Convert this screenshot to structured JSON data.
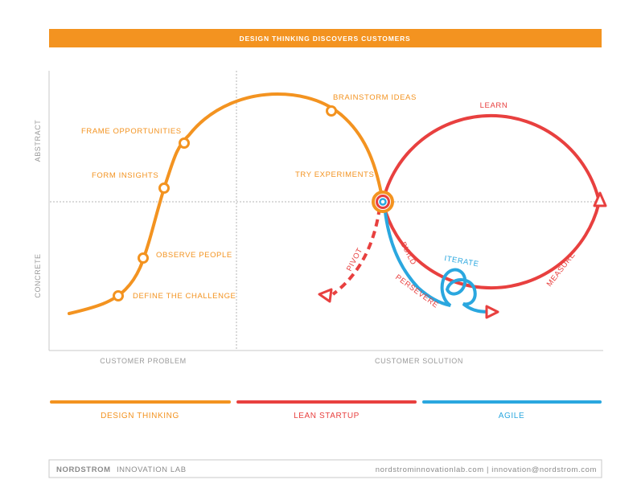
{
  "banner": {
    "title": "DESIGN THINKING DISCOVERS CUSTOMERS"
  },
  "axes": {
    "y_top": "ABSTRACT",
    "y_bottom": "CONCRETE",
    "x_left": "CUSTOMER PROBLEM",
    "x_right": "CUSTOMER SOLUTION"
  },
  "design_steps": [
    "DEFINE THE CHALLENGE",
    "OBSERVE PEOPLE",
    "FORM INSIGHTS",
    "FRAME OPPORTUNITIES",
    "BRAINSTORM IDEAS",
    "TRY EXPERIMENTS"
  ],
  "lean_labels": {
    "learn": "LEARN",
    "build": "BUILD",
    "measure": "MEASURE",
    "pivot": "PIVOT",
    "persevere": "PERSEVERE"
  },
  "agile_labels": {
    "iterate": "ITERATE"
  },
  "legend": [
    {
      "label": "DESIGN THINKING",
      "color": "#F39320"
    },
    {
      "label": "LEAN STARTUP",
      "color": "#E8403F"
    },
    {
      "label": "AGILE",
      "color": "#2AA7DF"
    }
  ],
  "colors": {
    "orange": "#F39320",
    "red": "#E8403F",
    "blue": "#2AA7DF",
    "gray": "#9a9a9a"
  },
  "footer": {
    "org_bold": "NORDSTROM",
    "org_rest": "INNOVATION LAB",
    "links": "nordstrominnovationlab.com  |  innovation@nordstrom.com"
  }
}
